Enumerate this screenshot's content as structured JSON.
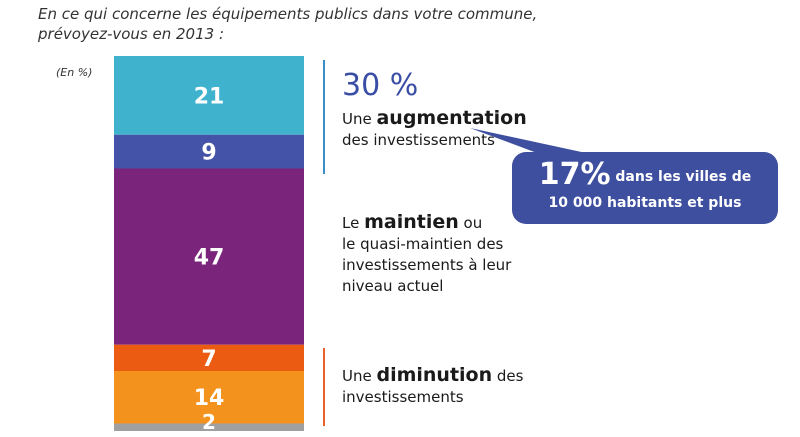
{
  "header": {
    "question_line1": "En ce qui concerne les équipements publics dans votre commune,",
    "question_line2": "prévoyez-vous en 2013 :",
    "unit": "(En %)"
  },
  "chart_data": {
    "type": "bar",
    "orientation": "vertical-stacked",
    "categories": [
      ""
    ],
    "series": [
      {
        "values": [
          21
        ],
        "color": "#3fb2cd"
      },
      {
        "values": [
          9
        ],
        "color": "#4453a8"
      },
      {
        "values": [
          47
        ],
        "color": "#7a257b"
      },
      {
        "values": [
          7
        ],
        "color": "#ec5b12"
      },
      {
        "values": [
          14
        ],
        "color": "#f4921e"
      },
      {
        "values": [
          2
        ],
        "color": "#a0a0a0"
      }
    ],
    "ylim": [
      0,
      100
    ],
    "grid": false,
    "legend": "none"
  },
  "groups": {
    "increase": {
      "total": "30 %",
      "line1_prefix": "Une ",
      "line1_bold": "augmentation",
      "line2": "des investissements",
      "bracket_color": "#3a8fc8"
    },
    "maintain": {
      "line1_prefix": "Le ",
      "line1_bold": "maintien",
      "line1_suffix": " ou",
      "line2": "le quasi-maintien des",
      "line3": "investissements à leur",
      "line4": "niveau actuel"
    },
    "decrease": {
      "line1_prefix": "Une ",
      "line1_bold": "diminution",
      "line1_suffix": " des",
      "line2": "investissements",
      "bracket_color": "#e8602a"
    }
  },
  "callout": {
    "value": "17%",
    "text1": " dans les villes de",
    "text2": "10 000 habitants et plus",
    "color": "#3f4fa0"
  }
}
